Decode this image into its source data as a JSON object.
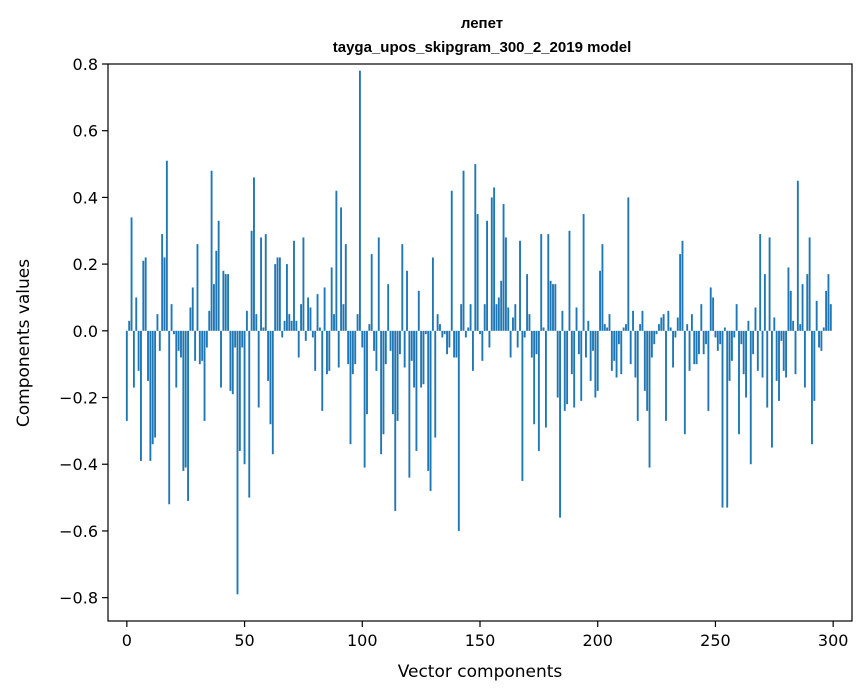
{
  "chart_data": {
    "type": "bar",
    "title": "лепет",
    "subtitle": "tayga_upos_skipgram_300_2_2019 model",
    "xlabel": "Vector components",
    "ylabel": "Components values",
    "xlim": [
      -8,
      308
    ],
    "ylim": [
      -0.87,
      0.8
    ],
    "xticks": [
      0,
      50,
      100,
      150,
      200,
      250,
      300
    ],
    "yticks": [
      -0.8,
      -0.6,
      -0.4,
      -0.2,
      0.0,
      0.2,
      0.4,
      0.6,
      0.8
    ],
    "xtick_labels": [
      "0",
      "50",
      "100",
      "150",
      "200",
      "250",
      "300"
    ],
    "ytick_labels": [
      "−0.8",
      "−0.6",
      "−0.4",
      "−0.2",
      "0.0",
      "0.2",
      "0.4",
      "0.6",
      "0.8"
    ],
    "bar_color": "#1f77b4",
    "series": [
      {
        "name": "лепет",
        "values": [
          -0.27,
          0.03,
          0.34,
          -0.17,
          0.1,
          -0.12,
          -0.39,
          0.21,
          0.22,
          -0.15,
          -0.39,
          -0.34,
          -0.32,
          0.05,
          -0.06,
          0.29,
          0.22,
          0.51,
          -0.52,
          0.08,
          -0.01,
          -0.17,
          -0.06,
          -0.08,
          -0.42,
          -0.41,
          -0.51,
          0.07,
          0.13,
          -0.09,
          0.26,
          -0.1,
          -0.09,
          -0.27,
          -0.05,
          0.06,
          0.48,
          0.14,
          0.24,
          0.33,
          -0.17,
          0.18,
          0.17,
          0.17,
          -0.18,
          -0.19,
          -0.05,
          -0.79,
          -0.36,
          -0.05,
          -0.4,
          0.06,
          -0.5,
          0.3,
          0.46,
          0.05,
          -0.23,
          0.28,
          0.01,
          0.29,
          -0.15,
          -0.28,
          -0.37,
          0.2,
          0.22,
          0.22,
          -0.02,
          0.03,
          0.2,
          0.05,
          0.03,
          0.27,
          0.03,
          -0.08,
          0.08,
          0.28,
          -0.03,
          0.1,
          0.07,
          -0.02,
          -0.12,
          0.11,
          0.01,
          -0.24,
          0.13,
          -0.13,
          -0.12,
          0.19,
          0.05,
          0.42,
          -0.11,
          0.37,
          0.08,
          0.26,
          -0.1,
          -0.34,
          -0.13,
          -0.1,
          0.05,
          0.78,
          -0.05,
          -0.41,
          -0.25,
          0.02,
          0.23,
          -0.06,
          -0.12,
          0.28,
          -0.37,
          -0.31,
          -0.1,
          0.14,
          -0.06,
          -0.25,
          -0.54,
          -0.27,
          -0.07,
          0.26,
          -0.11,
          0.18,
          -0.44,
          -0.09,
          -0.17,
          -0.36,
          0.12,
          -0.17,
          -0.16,
          -0.01,
          -0.42,
          -0.48,
          0.22,
          -0.32,
          0.05,
          0.02,
          -0.02,
          -0.01,
          -0.07,
          -0.05,
          0.42,
          -0.08,
          -0.08,
          -0.6,
          0.08,
          0.48,
          -0.02,
          0.01,
          0.08,
          -0.12,
          0.5,
          0.35,
          -0.01,
          -0.09,
          0.08,
          0.33,
          -0.05,
          0.4,
          0.43,
          0.08,
          0.1,
          0.15,
          0.38,
          0.28,
          0.07,
          -0.08,
          0.04,
          0.08,
          -0.05,
          0.27,
          -0.45,
          -0.02,
          0.17,
          0.05,
          -0.08,
          -0.28,
          -0.07,
          -0.36,
          0.29,
          0.01,
          -0.29,
          0.29,
          0.15,
          0.14,
          0.14,
          -0.2,
          -0.56,
          0.06,
          -0.24,
          -0.22,
          0.3,
          -0.13,
          -0.23,
          0.07,
          -0.07,
          -0.21,
          0.35,
          -0.08,
          0.03,
          -0.15,
          -0.06,
          -0.2,
          -0.18,
          0.18,
          0.26,
          0.02,
          0.01,
          0.05,
          -0.12,
          -0.09,
          -0.14,
          -0.04,
          -0.13,
          0.01,
          0.02,
          0.4,
          -0.1,
          0.06,
          -0.14,
          -0.27,
          0.02,
          0.06,
          -0.18,
          -0.24,
          -0.41,
          -0.08,
          -0.04,
          -0.01,
          0.02,
          0.04,
          0.05,
          -0.27,
          0.06,
          0.01,
          -0.11,
          -0.02,
          0.04,
          0.23,
          0.27,
          -0.31,
          0.02,
          -0.12,
          0.05,
          -0.1,
          -0.1,
          -0.07,
          0.08,
          -0.07,
          -0.04,
          -0.24,
          0.13,
          0.1,
          -0.02,
          -0.06,
          -0.04,
          -0.53,
          0.01,
          -0.53,
          -0.15,
          -0.09,
          -0.02,
          0.08,
          -0.31,
          -0.04,
          -0.13,
          -0.2,
          0.03,
          -0.4,
          -0.07,
          0.07,
          -0.12,
          0.29,
          -0.14,
          0.17,
          -0.23,
          0.28,
          -0.35,
          0.04,
          -0.15,
          -0.21,
          -0.03,
          -0.12,
          -0.14,
          0.19,
          0.12,
          0.03,
          -0.13,
          0.45,
          0.02,
          0.14,
          -0.17,
          0.17,
          0.28,
          -0.34,
          -0.21,
          0.09,
          -0.05,
          -0.06,
          0.01,
          0.12,
          0.17,
          0.08
        ]
      }
    ]
  }
}
